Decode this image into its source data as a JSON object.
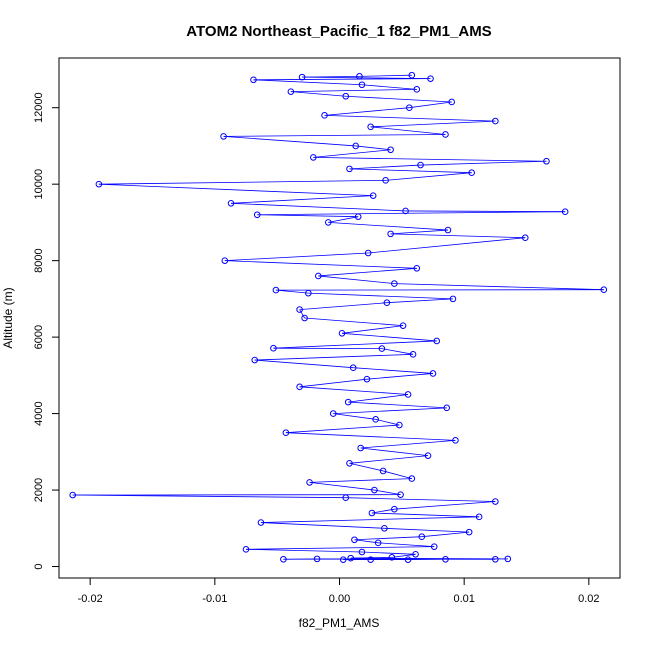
{
  "chart_data": {
    "type": "scatter",
    "title": "ATOM2 Northeast_Pacific_1 f82_PM1_AMS",
    "xlabel": "f82_PM1_AMS",
    "ylabel": "Altitude (m)",
    "xlim": [
      -0.0225,
      0.0225
    ],
    "ylim": [
      -300,
      13300
    ],
    "x_ticks": [
      -0.02,
      -0.01,
      0.0,
      0.01,
      0.02
    ],
    "x_tick_labels": [
      "-0.02",
      "-0.01",
      "0.00",
      "0.01",
      "0.02"
    ],
    "y_ticks": [
      0,
      2000,
      4000,
      6000,
      8000,
      10000,
      12000
    ],
    "y_tick_labels": [
      "0",
      "2000",
      "4000",
      "6000",
      "8000",
      "10000",
      "12000"
    ],
    "grid": false,
    "legend": "none",
    "colors": {
      "series": "#0000ff",
      "dense_line": "#000000",
      "axis": "#000000"
    },
    "series": [
      {
        "marker": "open-circle",
        "connected": true,
        "points": [
          [
            0.0003,
            180
          ],
          [
            0.0025,
            180
          ],
          [
            0.0055,
            180
          ],
          [
            0.0085,
            190
          ],
          [
            0.0125,
            190
          ],
          [
            -0.0018,
            200
          ],
          [
            -0.0045,
            190
          ],
          [
            0.0135,
            200
          ],
          [
            0.0009,
            220
          ],
          [
            0.0042,
            240
          ],
          [
            0.0061,
            320
          ],
          [
            0.0018,
            380
          ],
          [
            -0.0075,
            450
          ],
          [
            0.0076,
            520
          ],
          [
            0.0031,
            620
          ],
          [
            0.0012,
            700
          ],
          [
            0.0066,
            780
          ],
          [
            0.0104,
            900
          ],
          [
            0.0036,
            1000
          ],
          [
            -0.0063,
            1150
          ],
          [
            0.0112,
            1300
          ],
          [
            0.0026,
            1400
          ],
          [
            0.0044,
            1500
          ],
          [
            0.0125,
            1700
          ],
          [
            0.0005,
            1800
          ],
          [
            -0.0214,
            1870
          ],
          [
            0.0049,
            1880
          ],
          [
            0.0028,
            2000
          ],
          [
            -0.0024,
            2200
          ],
          [
            0.0058,
            2300
          ],
          [
            0.0035,
            2500
          ],
          [
            0.0008,
            2700
          ],
          [
            0.0071,
            2900
          ],
          [
            0.0017,
            3100
          ],
          [
            0.0093,
            3300
          ],
          [
            -0.0043,
            3500
          ],
          [
            0.0048,
            3700
          ],
          [
            0.0029,
            3850
          ],
          [
            -0.0005,
            4000
          ],
          [
            0.0086,
            4150
          ],
          [
            0.0007,
            4300
          ],
          [
            0.0055,
            4500
          ],
          [
            -0.0032,
            4700
          ],
          [
            0.0022,
            4900
          ],
          [
            0.0075,
            5050
          ],
          [
            0.0011,
            5200
          ],
          [
            -0.0068,
            5400
          ],
          [
            0.0059,
            5550
          ],
          [
            0.0034,
            5700
          ],
          [
            -0.0053,
            5710
          ],
          [
            0.0078,
            5900
          ],
          [
            0.0002,
            6100
          ],
          [
            0.0051,
            6300
          ],
          [
            -0.0028,
            6500
          ],
          [
            -0.0032,
            6720
          ],
          [
            0.0038,
            6900
          ],
          [
            0.0091,
            7000
          ],
          [
            -0.0025,
            7150
          ],
          [
            -0.0051,
            7230
          ],
          [
            0.0212,
            7240
          ],
          [
            0.0044,
            7400
          ],
          [
            -0.0017,
            7600
          ],
          [
            0.0062,
            7800
          ],
          [
            -0.0092,
            8000
          ],
          [
            0.0023,
            8200
          ],
          [
            0.0149,
            8600
          ],
          [
            0.0041,
            8700
          ],
          [
            0.0087,
            8800
          ],
          [
            -0.0009,
            9000
          ],
          [
            0.0015,
            9150
          ],
          [
            -0.0066,
            9200
          ],
          [
            0.0181,
            9280
          ],
          [
            0.0053,
            9300
          ],
          [
            -0.0087,
            9500
          ],
          [
            0.0027,
            9700
          ],
          [
            -0.0193,
            10000
          ],
          [
            0.0037,
            10100
          ],
          [
            0.0106,
            10300
          ],
          [
            0.0008,
            10400
          ],
          [
            0.0065,
            10500
          ],
          [
            0.0166,
            10600
          ],
          [
            -0.0021,
            10700
          ],
          [
            0.0041,
            10900
          ],
          [
            0.0013,
            11000
          ],
          [
            -0.0093,
            11250
          ],
          [
            0.0085,
            11300
          ],
          [
            0.0025,
            11500
          ],
          [
            0.0125,
            11650
          ],
          [
            -0.0012,
            11800
          ],
          [
            0.0056,
            12000
          ],
          [
            0.009,
            12150
          ],
          [
            0.0005,
            12300
          ],
          [
            -0.0039,
            12420
          ],
          [
            0.0062,
            12480
          ],
          [
            0.0018,
            12600
          ],
          [
            -0.0069,
            12730
          ],
          [
            0.0073,
            12760
          ],
          [
            -0.003,
            12800
          ],
          [
            0.0016,
            12820
          ],
          [
            0.0058,
            12850
          ]
        ]
      }
    ]
  }
}
